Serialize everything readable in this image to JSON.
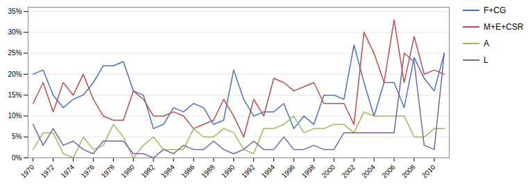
{
  "chart_data": {
    "type": "line",
    "x": [
      1970,
      1971,
      1972,
      1973,
      1974,
      1975,
      1976,
      1977,
      1978,
      1979,
      1980,
      1981,
      1982,
      1983,
      1984,
      1985,
      1986,
      1987,
      1988,
      1989,
      1990,
      1991,
      1992,
      1993,
      1994,
      1995,
      1996,
      1997,
      1998,
      1999,
      2000,
      2001,
      2002,
      2003,
      2004,
      2005,
      2006,
      2007,
      2008,
      2009,
      2010,
      2011
    ],
    "series": [
      {
        "name": "F+CG",
        "color": "#4472C4",
        "values": [
          0.2,
          0.21,
          0.15,
          0.12,
          0.14,
          0.15,
          0.18,
          0.22,
          0.22,
          0.23,
          0.16,
          0.15,
          0.07,
          0.08,
          0.12,
          0.11,
          0.13,
          0.12,
          0.08,
          0.09,
          0.21,
          0.14,
          0.1,
          0.11,
          0.11,
          0.13,
          0.07,
          0.1,
          0.08,
          0.15,
          0.15,
          0.14,
          0.27,
          0.18,
          0.1,
          0.18,
          0.18,
          0.12,
          0.24,
          0.19,
          0.16,
          0.25
        ]
      },
      {
        "name": "M+E+CSR",
        "color": "#BE4B48",
        "values": [
          0.13,
          0.18,
          0.11,
          0.18,
          0.15,
          0.2,
          0.14,
          0.1,
          0.09,
          0.09,
          0.16,
          0.14,
          0.1,
          0.1,
          0.11,
          0.1,
          0.07,
          0.08,
          0.09,
          0.14,
          0.1,
          0.05,
          0.14,
          0.1,
          0.19,
          0.18,
          0.16,
          0.17,
          0.18,
          0.13,
          0.13,
          0.13,
          0.08,
          0.3,
          0.25,
          0.18,
          0.33,
          0.18,
          0.29,
          0.2,
          0.21,
          0.2
        ]
      },
      {
        "name": "A",
        "color": "#9BBB59",
        "values": [
          0.02,
          0.06,
          0.06,
          0.01,
          0.0,
          0.05,
          0.02,
          0.03,
          0.08,
          0.05,
          0.0,
          0.03,
          0.05,
          0.02,
          0.02,
          0.02,
          0.07,
          0.05,
          0.05,
          0.07,
          0.06,
          0.02,
          0.01,
          0.07,
          0.07,
          0.08,
          0.1,
          0.06,
          0.07,
          0.07,
          0.08,
          0.08,
          0.06,
          0.11,
          0.1,
          0.1,
          0.1,
          0.1,
          0.05,
          0.05,
          0.07,
          0.07
        ]
      },
      {
        "name": "L",
        "color": "#7F5FA8",
        "values": [
          0.08,
          0.03,
          0.07,
          0.03,
          0.04,
          0.02,
          0.01,
          0.04,
          0.04,
          0.04,
          0.01,
          0.01,
          0.0,
          0.02,
          0.01,
          0.03,
          0.02,
          0.02,
          0.04,
          0.02,
          0.01,
          0.02,
          0.04,
          0.02,
          0.02,
          0.05,
          0.02,
          0.02,
          0.03,
          0.02,
          0.02,
          0.06,
          0.06,
          0.06,
          0.06,
          0.06,
          0.06,
          0.25,
          0.23,
          0.03,
          0.02,
          0.25
        ]
      }
    ],
    "xlim": [
      1969.5,
      2011.5
    ],
    "xticks": [
      1970,
      1972,
      1974,
      1976,
      1978,
      1980,
      1982,
      1984,
      1986,
      1988,
      1990,
      1992,
      1994,
      1996,
      1998,
      2000,
      2002,
      2004,
      2006,
      2008,
      2010
    ],
    "ylim": [
      0.0,
      0.36
    ],
    "yticks": [
      {
        "value": 0.0,
        "label": "0%"
      },
      {
        "value": 0.05,
        "label": "5%"
      },
      {
        "value": 0.1,
        "label": "10%"
      },
      {
        "value": 0.15,
        "label": "15%"
      },
      {
        "value": 0.2,
        "label": "20%"
      },
      {
        "value": 0.25,
        "label": "25%"
      },
      {
        "value": 0.3,
        "label": "30%"
      },
      {
        "value": 0.35,
        "label": "35%"
      }
    ],
    "grid": "y",
    "legend": "right"
  }
}
